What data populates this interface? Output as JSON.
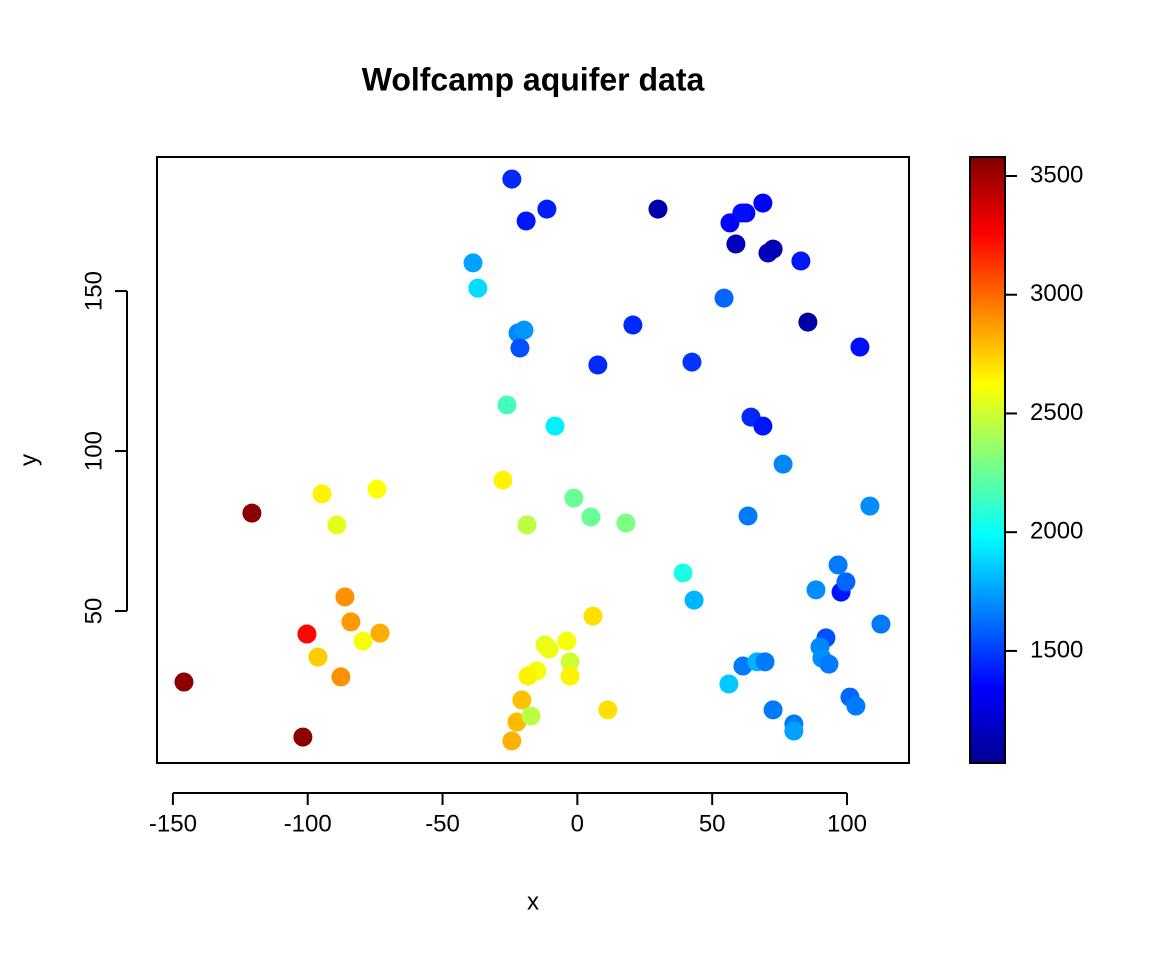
{
  "chart_data": {
    "type": "scatter",
    "title": "Wolfcamp aquifer data",
    "x_label": "x",
    "y_label": "y",
    "xlim": [
      -155.9,
      123.0
    ],
    "ylim": [
      2.5,
      191.9
    ],
    "xticks": [
      -150,
      -100,
      -50,
      0,
      50,
      100
    ],
    "yticks": [
      50,
      100,
      150
    ],
    "zlim": [
      1028,
      3580
    ],
    "zticks": [
      1500,
      2000,
      2500,
      3000,
      3500
    ],
    "colormap": [
      "#00008F",
      "#0000FF",
      "#0080FF",
      "#00FFFF",
      "#80FF80",
      "#FFFF00",
      "#FF8000",
      "#FF0000",
      "#800000"
    ],
    "x": [
      -24.3,
      -19,
      -11.3,
      29.9,
      56.6,
      62.5,
      68.8,
      61,
      58.8,
      72.6,
      70.7,
      82.9,
      85.5,
      104.8,
      -38.7,
      -36.9,
      54.4,
      -22,
      -19.8,
      -21.3,
      20.6,
      7.6,
      42.5,
      64.4,
      68.8,
      -26.1,
      -8.3,
      76.3,
      -27.6,
      -94.7,
      -74.3,
      -120.7,
      -89.2,
      -1.3,
      5,
      18,
      -18.7,
      63.3,
      108.5,
      39.2,
      43.3,
      96.7,
      88.5,
      97.8,
      99.6,
      -86.2,
      -84,
      -73.2,
      -100.3,
      -79.5,
      -96.2,
      -87.7,
      -145.9,
      -101.8,
      5.8,
      -12,
      -3.9,
      -10.5,
      -2.7,
      -15,
      -18.3,
      -2.7,
      -20.6,
      -22.4,
      -24.3,
      -17.2,
      11.3,
      92.2,
      90,
      90.7,
      93.3,
      112.6,
      61.4,
      66.6,
      69.6,
      56.2,
      72.6,
      80.3,
      80.3,
      101.1,
      103.3
    ],
    "y": [
      185,
      171.9,
      175.6,
      175.6,
      171.3,
      174.4,
      177.5,
      174.4,
      164.7,
      163.1,
      161.9,
      159.4,
      140.3,
      132.5,
      158.8,
      150.9,
      147.8,
      136.9,
      137.8,
      132.2,
      139.4,
      126.9,
      127.8,
      110.6,
      107.8,
      114.4,
      107.8,
      95.9,
      90.9,
      86.6,
      88.1,
      80.6,
      76.9,
      85.3,
      79.4,
      77.5,
      76.9,
      79.7,
      82.8,
      61.9,
      53.4,
      64.4,
      56.6,
      55.9,
      59.1,
      54.4,
      46.6,
      43.1,
      42.8,
      40.6,
      35.6,
      29.4,
      27.8,
      10.6,
      48.4,
      39.4,
      40.6,
      38.1,
      34.1,
      31.3,
      29.7,
      29.7,
      22.2,
      15.3,
      9.4,
      17.2,
      19.1,
      41.6,
      38.8,
      35.3,
      33.4,
      45.9,
      32.8,
      34.1,
      34.1,
      27.2,
      19.1,
      14.7,
      12.5,
      23.1,
      20.3
    ],
    "z": [
      1450,
      1400,
      1420,
      1100,
      1350,
      1350,
      1350,
      1380,
      1150,
      1120,
      1150,
      1400,
      1100,
      1380,
      1750,
      1900,
      1600,
      1680,
      1720,
      1550,
      1450,
      1450,
      1480,
      1450,
      1400,
      2150,
      1950,
      1680,
      2650,
      2650,
      2620,
      3550,
      2550,
      2250,
      2250,
      2300,
      2450,
      1650,
      1700,
      2050,
      1800,
      1650,
      1700,
      1400,
      1600,
      2900,
      2880,
      2830,
      3250,
      2600,
      2750,
      2900,
      3550,
      3550,
      2700,
      2550,
      2600,
      2580,
      2500,
      2600,
      2650,
      2650,
      2780,
      2800,
      2820,
      2450,
      2700,
      1550,
      1680,
      1700,
      1650,
      1650,
      1650,
      1800,
      1650,
      1850,
      1650,
      1650,
      1750,
      1600,
      1650
    ]
  }
}
